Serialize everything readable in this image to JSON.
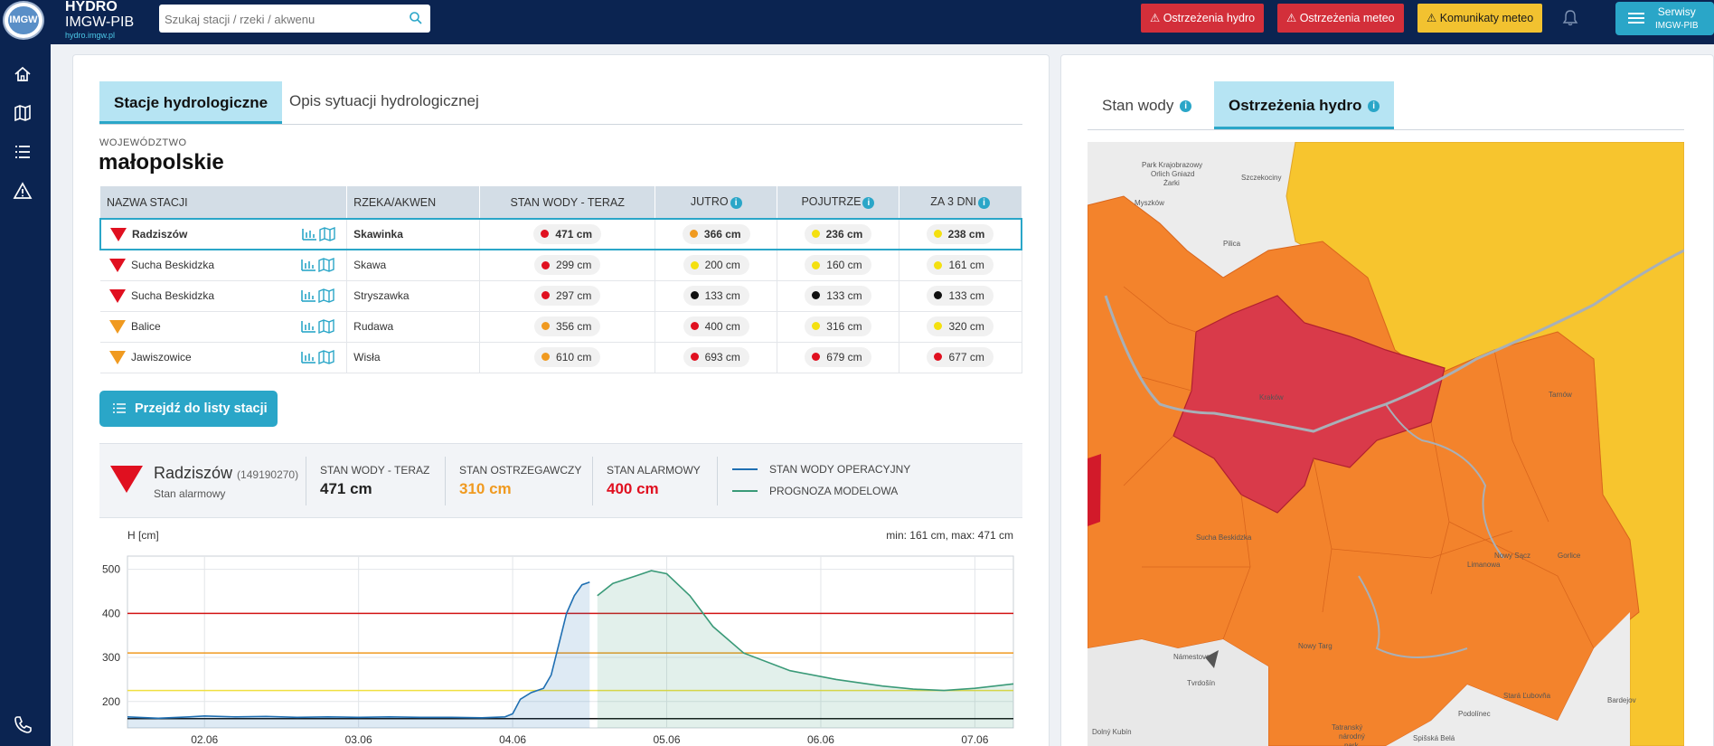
{
  "header": {
    "logo_text": "IMGW",
    "brand_line1": "HYDRO",
    "brand_line2": "IMGW-PIB",
    "brand_line3": "hydro.imgw.pl",
    "search_placeholder": "Szukaj stacji / rzeki / akwenu",
    "buttons": {
      "hydro_warnings": "Ostrzeżenia hydro",
      "meteo_warnings": "Ostrzeżenia meteo",
      "meteo_messages": "Komunikaty meteo"
    },
    "serwisy_line1": "Serwisy",
    "serwisy_line2": "IMGW-PIB"
  },
  "sidebar": {
    "icons": [
      "home-icon",
      "map-icon",
      "list-icon",
      "warning-icon",
      "phone-icon"
    ]
  },
  "left": {
    "tabs": [
      "Stacje hydrologiczne",
      "Opis sytuacji hydrologicznej"
    ],
    "region_label": "WOJEWÓDZTWO",
    "region_name": "małopolskie",
    "table": {
      "headers": {
        "station": "NAZWA STACJI",
        "river": "RZEKA/AKWEN",
        "now": "STAN WODY - TERAZ",
        "tomorrow": "JUTRO",
        "day_after": "POJUTRZE",
        "in3days": "ZA 3 DNI"
      },
      "rows": [
        {
          "name": "Radziszów",
          "river": "Skawinka",
          "now": "471 cm",
          "tomorrow": "366 cm",
          "day_after": "236 cm",
          "in3days": "238 cm"
        },
        {
          "name": "Sucha Beskidzka",
          "river": "Skawa",
          "now": "299 cm",
          "tomorrow": "200 cm",
          "day_after": "160 cm",
          "in3days": "161 cm"
        },
        {
          "name": "Sucha Beskidzka",
          "river": "Stryszawka",
          "now": "297 cm",
          "tomorrow": "133 cm",
          "day_after": "133 cm",
          "in3days": "133 cm"
        },
        {
          "name": "Balice",
          "river": "Rudawa",
          "now": "356 cm",
          "tomorrow": "400 cm",
          "day_after": "316 cm",
          "in3days": "320 cm"
        },
        {
          "name": "Jawiszowice",
          "river": "Wisła",
          "now": "610 cm",
          "tomorrow": "693 cm",
          "day_after": "679 cm",
          "in3days": "677 cm"
        }
      ]
    },
    "station_list_button": "Przejdź do listy stacji",
    "detail": {
      "name": "Radziszów",
      "code": "(149190270)",
      "status": "Stan alarmowy",
      "now_label": "STAN WODY - TERAZ",
      "now_value": "471 cm",
      "warn_label": "STAN OSTRZEGAWCZY",
      "warn_value": "310 cm",
      "alarm_label": "STAN ALARMOWY",
      "alarm_value": "400 cm",
      "legend_operational": "STAN WODY OPERACYJNY",
      "legend_model": "PROGNOZA MODELOWA"
    }
  },
  "right": {
    "tabs": [
      "Stan wody",
      "Ostrzeżenia hydro"
    ],
    "map_labels": [
      "Park Krajobrazowy Orlich Gniazd",
      "Żarki",
      "Szczekociny",
      "Myszków",
      "Pilica",
      "Kraków",
      "Nowy Targ",
      "Nowy Sącz",
      "Tarnów",
      "Limanowa",
      "Gorlice",
      "Sucha Beskidzka",
      "Stará Ľubovňa",
      "Bardejov",
      "Námestovo",
      "Tvrdošín",
      "Podolínec",
      "Spišská Belá",
      "Dolný Kubín",
      "Tatranský národný park"
    ]
  },
  "chart_data": {
    "type": "line",
    "ylabel": "H [cm]",
    "minmax_text": "min: 161 cm, max: 471 cm",
    "x_ticks": [
      "02.06",
      "03.06",
      "04.06",
      "05.06",
      "06.06",
      "07.06"
    ],
    "y_ticks": [
      200,
      300,
      400,
      500
    ],
    "ylim": [
      140,
      530
    ],
    "thresholds": [
      {
        "name": "STAN ALARMOWY",
        "value": 400,
        "color": "#d21414"
      },
      {
        "name": "STAN OSTRZEGAWCZY",
        "value": 310,
        "color": "#f09a20"
      },
      {
        "name": "",
        "value": 225,
        "color": "#f0e040"
      },
      {
        "name": "",
        "value": 161,
        "color": "#111111"
      }
    ],
    "series": [
      {
        "name": "STAN WODY OPERACYJNY",
        "color": "#1f6fb2",
        "x": [
          1.5,
          1.7,
          1.9,
          2.0,
          2.2,
          2.4,
          2.6,
          2.8,
          3.0,
          3.2,
          3.4,
          3.6,
          3.8,
          3.95,
          4.0,
          4.05,
          4.12,
          4.2,
          4.25,
          4.3,
          4.35,
          4.4,
          4.45,
          4.5
        ],
        "y": [
          165,
          162,
          165,
          167,
          165,
          166,
          164,
          165,
          164,
          165,
          164,
          164,
          163,
          165,
          172,
          205,
          220,
          230,
          260,
          330,
          400,
          440,
          465,
          471
        ]
      },
      {
        "name": "PROGNOZA MODELOWA",
        "color": "#3a9a78",
        "x": [
          4.55,
          4.65,
          4.8,
          4.9,
          5.0,
          5.15,
          5.3,
          5.5,
          5.8,
          6.1,
          6.4,
          6.6,
          6.8,
          7.0,
          7.25
        ],
        "y": [
          440,
          468,
          485,
          497,
          490,
          440,
          370,
          310,
          270,
          250,
          235,
          228,
          225,
          230,
          240
        ]
      }
    ]
  }
}
